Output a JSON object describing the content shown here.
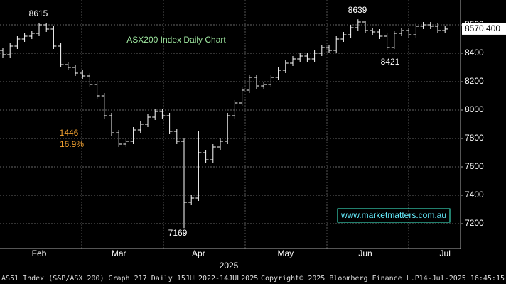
{
  "chart_data": {
    "type": "ohlc",
    "title": "ASX200 Index Daily Chart",
    "color": "#ffffff",
    "categories": [
      null,
      null,
      null,
      null,
      null,
      "Feb",
      null,
      null,
      null,
      null,
      null,
      null,
      null,
      null,
      null,
      null,
      "Mar",
      null,
      null,
      null,
      null,
      null,
      null,
      null,
      null,
      null,
      null,
      "Apr",
      null,
      null,
      null,
      null,
      null,
      null,
      null,
      null,
      null,
      null,
      null,
      "May",
      null,
      null,
      null,
      null,
      null,
      null,
      null,
      null,
      null,
      null,
      "Jun",
      null,
      null,
      null,
      null,
      null,
      null,
      null,
      null,
      null,
      null,
      "Jul"
    ],
    "year_label": "2025",
    "open": [
      8420,
      8390,
      8450,
      8500,
      8520,
      8540,
      8600,
      8570,
      8450,
      8320,
      8300,
      8260,
      8240,
      8180,
      8100,
      7960,
      7840,
      7760,
      7780,
      7860,
      7900,
      7950,
      7990,
      7960,
      7850,
      7780,
      7350,
      7380,
      7700,
      7650,
      7740,
      7780,
      7960,
      8050,
      8140,
      8230,
      8170,
      8180,
      8230,
      8280,
      8330,
      8360,
      8380,
      8360,
      8400,
      8440,
      8420,
      8500,
      8530,
      8580,
      8620,
      8560,
      8550,
      8520,
      8440,
      8540,
      8560,
      8530,
      8590,
      8600,
      8590,
      8560
    ],
    "high": [
      8440,
      8470,
      8520,
      8540,
      8560,
      8615,
      8610,
      8590,
      8470,
      8340,
      8320,
      8280,
      8260,
      8200,
      8120,
      7980,
      7860,
      7800,
      7880,
      7920,
      7970,
      8010,
      8010,
      7980,
      7870,
      7800,
      7400,
      7850,
      7720,
      7760,
      7800,
      7980,
      8070,
      8160,
      8250,
      8250,
      8200,
      8250,
      8300,
      8350,
      8380,
      8400,
      8400,
      8420,
      8460,
      8460,
      8520,
      8550,
      8600,
      8639,
      8625,
      8580,
      8570,
      8540,
      8560,
      8580,
      8580,
      8610,
      8620,
      8620,
      8610,
      8590
    ],
    "low": [
      8370,
      8370,
      8430,
      8480,
      8500,
      8520,
      8550,
      8430,
      8300,
      8280,
      8240,
      8220,
      8160,
      8080,
      7940,
      7820,
      7740,
      7740,
      7760,
      7840,
      7880,
      7930,
      7940,
      7830,
      7760,
      7169,
      7330,
      7360,
      7630,
      7630,
      7720,
      7760,
      7940,
      8030,
      8120,
      8150,
      8150,
      8160,
      8210,
      8260,
      8310,
      8340,
      8340,
      8340,
      8380,
      8400,
      8400,
      8480,
      8510,
      8560,
      8540,
      8530,
      8500,
      8421,
      8430,
      8520,
      8510,
      8510,
      8570,
      8570,
      8540,
      8540
    ],
    "close": [
      8390,
      8450,
      8500,
      8520,
      8540,
      8600,
      8570,
      8450,
      8320,
      8300,
      8260,
      8240,
      8180,
      8100,
      7960,
      7840,
      7760,
      7780,
      7860,
      7900,
      7950,
      7990,
      7960,
      7850,
      7780,
      7350,
      7380,
      7700,
      7650,
      7740,
      7780,
      7960,
      8050,
      8140,
      8230,
      8170,
      8180,
      8230,
      8280,
      8330,
      8360,
      8380,
      8360,
      8400,
      8440,
      8420,
      8500,
      8530,
      8580,
      8620,
      8560,
      8550,
      8520,
      8440,
      8540,
      8560,
      8530,
      8590,
      8600,
      8590,
      8560,
      8570.4
    ],
    "last_price": {
      "value": 8570.4,
      "label": "8570.400"
    },
    "annotations": [
      "8615",
      "8639",
      "8421",
      "7169",
      "1446",
      "16.9%"
    ],
    "watermark": "www.marketmatters.com.au",
    "footer": [
      "AS51 Index (S&P/ASX 200) Graph 217  Daily 15JUL2022-14JUL2025",
      "Copyright© 2025 Bloomberg Finance L.P.",
      "14-Jul-2025 16:45:15"
    ],
    "ylim": [
      7025,
      8775
    ],
    "yticks": [
      7200,
      7400,
      7600,
      7800,
      8000,
      8200,
      8400,
      8600
    ],
    "grid": true
  }
}
